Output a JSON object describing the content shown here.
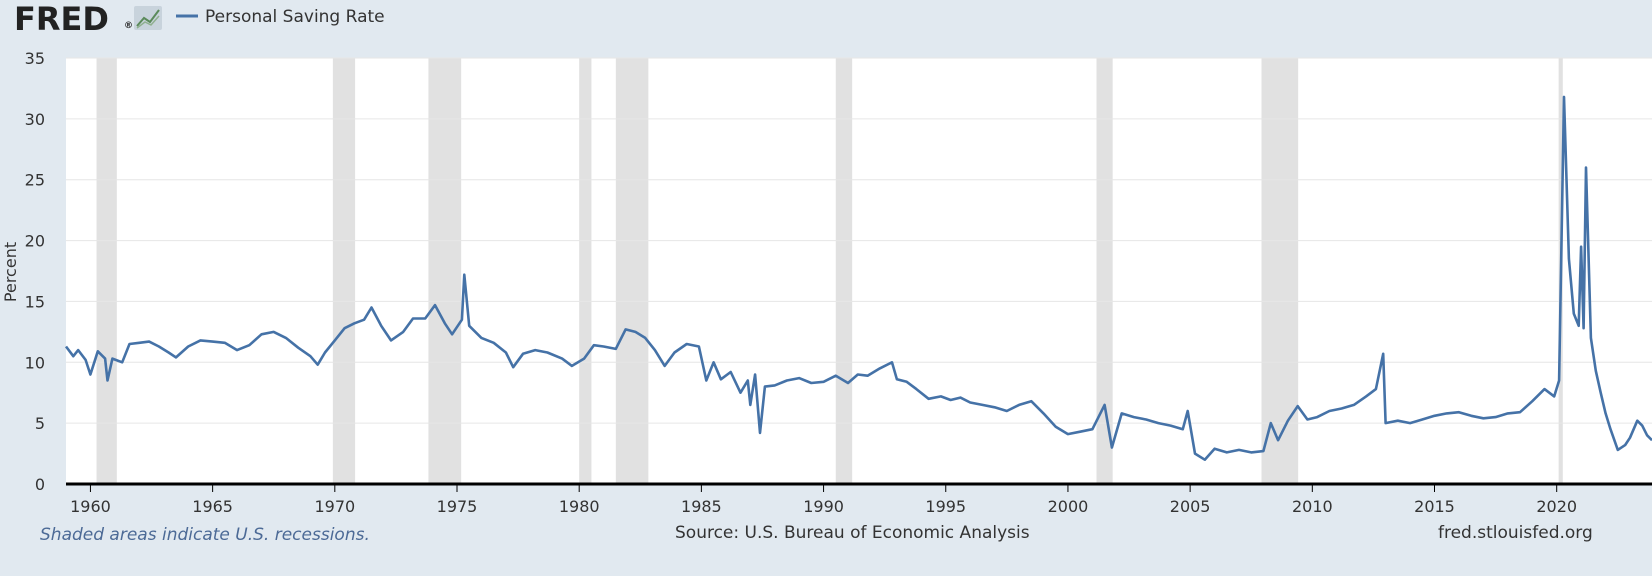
{
  "logo": {
    "text": "FRED",
    "trademark": "®",
    "icon": "chart-icon"
  },
  "legend": {
    "label": "Personal Saving Rate",
    "color": "#4572a7"
  },
  "footer": {
    "recession_note": "Shaded areas indicate U.S. recessions.",
    "source": "Source: U.S. Bureau of Economic Analysis",
    "site": "fred.stlouisfed.org"
  },
  "chart_data": {
    "type": "line",
    "title": "",
    "xlabel": "",
    "ylabel": "Percent",
    "xlim": [
      1959.0,
      2023.9
    ],
    "ylim": [
      0,
      35
    ],
    "yticks": [
      0,
      5,
      10,
      15,
      20,
      25,
      30,
      35
    ],
    "xticks": [
      1960,
      1965,
      1970,
      1975,
      1980,
      1985,
      1990,
      1995,
      2000,
      2005,
      2010,
      2015,
      2020
    ],
    "grid": true,
    "legend_position": "top-left",
    "colors": {
      "line": "#4572a7",
      "recession": "#e1e1e1",
      "grid": "#e6e6e6",
      "plot_bg": "#ffffff",
      "page_bg": "#e1e9f0"
    },
    "recessions": [
      [
        1960.25,
        1961.08
      ],
      [
        1969.92,
        1970.83
      ],
      [
        1973.83,
        1975.17
      ],
      [
        1980.0,
        1980.5
      ],
      [
        1981.5,
        1982.83
      ],
      [
        1990.5,
        1991.17
      ],
      [
        2001.17,
        2001.83
      ],
      [
        2007.92,
        2009.42
      ],
      [
        2020.08,
        2020.25
      ]
    ],
    "series": [
      {
        "name": "Personal Saving Rate",
        "points": [
          [
            1959.0,
            11.3
          ],
          [
            1959.3,
            10.5
          ],
          [
            1959.5,
            11.0
          ],
          [
            1959.8,
            10.2
          ],
          [
            1960.0,
            9.0
          ],
          [
            1960.3,
            10.9
          ],
          [
            1960.6,
            10.3
          ],
          [
            1960.7,
            8.5
          ],
          [
            1960.9,
            10.3
          ],
          [
            1961.3,
            10.0
          ],
          [
            1961.6,
            11.5
          ],
          [
            1962.0,
            11.6
          ],
          [
            1962.4,
            11.7
          ],
          [
            1962.8,
            11.3
          ],
          [
            1963.2,
            10.8
          ],
          [
            1963.5,
            10.4
          ],
          [
            1964.0,
            11.3
          ],
          [
            1964.5,
            11.8
          ],
          [
            1965.0,
            11.7
          ],
          [
            1965.5,
            11.6
          ],
          [
            1966.0,
            11.0
          ],
          [
            1966.5,
            11.4
          ],
          [
            1967.0,
            12.3
          ],
          [
            1967.5,
            12.5
          ],
          [
            1968.0,
            12.0
          ],
          [
            1968.5,
            11.2
          ],
          [
            1969.0,
            10.5
          ],
          [
            1969.3,
            9.8
          ],
          [
            1969.6,
            10.8
          ],
          [
            1970.0,
            11.8
          ],
          [
            1970.4,
            12.8
          ],
          [
            1970.8,
            13.2
          ],
          [
            1971.2,
            13.5
          ],
          [
            1971.5,
            14.5
          ],
          [
            1971.9,
            13.0
          ],
          [
            1972.3,
            11.8
          ],
          [
            1972.8,
            12.5
          ],
          [
            1973.2,
            13.6
          ],
          [
            1973.7,
            13.6
          ],
          [
            1974.1,
            14.7
          ],
          [
            1974.5,
            13.2
          ],
          [
            1974.8,
            12.3
          ],
          [
            1975.2,
            13.5
          ],
          [
            1975.3,
            17.2
          ],
          [
            1975.5,
            13.0
          ],
          [
            1976.0,
            12.0
          ],
          [
            1976.5,
            11.6
          ],
          [
            1977.0,
            10.8
          ],
          [
            1977.3,
            9.6
          ],
          [
            1977.7,
            10.7
          ],
          [
            1978.2,
            11.0
          ],
          [
            1978.7,
            10.8
          ],
          [
            1979.3,
            10.3
          ],
          [
            1979.7,
            9.7
          ],
          [
            1980.2,
            10.3
          ],
          [
            1980.6,
            11.4
          ],
          [
            1981.0,
            11.3
          ],
          [
            1981.5,
            11.1
          ],
          [
            1981.9,
            12.7
          ],
          [
            1982.3,
            12.5
          ],
          [
            1982.7,
            12.0
          ],
          [
            1983.1,
            11.0
          ],
          [
            1983.5,
            9.7
          ],
          [
            1983.9,
            10.8
          ],
          [
            1984.4,
            11.5
          ],
          [
            1984.9,
            11.3
          ],
          [
            1985.2,
            8.5
          ],
          [
            1985.5,
            10.0
          ],
          [
            1985.8,
            8.6
          ],
          [
            1986.2,
            9.2
          ],
          [
            1986.6,
            7.5
          ],
          [
            1986.9,
            8.5
          ],
          [
            1987.0,
            6.5
          ],
          [
            1987.2,
            9.0
          ],
          [
            1987.4,
            4.2
          ],
          [
            1987.6,
            8.0
          ],
          [
            1988.0,
            8.1
          ],
          [
            1988.5,
            8.5
          ],
          [
            1989.0,
            8.7
          ],
          [
            1989.5,
            8.3
          ],
          [
            1990.0,
            8.4
          ],
          [
            1990.5,
            8.9
          ],
          [
            1991.0,
            8.3
          ],
          [
            1991.4,
            9.0
          ],
          [
            1991.8,
            8.9
          ],
          [
            1992.3,
            9.5
          ],
          [
            1992.8,
            10.0
          ],
          [
            1993.0,
            8.6
          ],
          [
            1993.4,
            8.4
          ],
          [
            1993.8,
            7.8
          ],
          [
            1994.3,
            7.0
          ],
          [
            1994.8,
            7.2
          ],
          [
            1995.2,
            6.9
          ],
          [
            1995.6,
            7.1
          ],
          [
            1996.0,
            6.7
          ],
          [
            1996.5,
            6.5
          ],
          [
            1997.0,
            6.3
          ],
          [
            1997.5,
            6.0
          ],
          [
            1998.0,
            6.5
          ],
          [
            1998.5,
            6.8
          ],
          [
            1999.0,
            5.8
          ],
          [
            1999.5,
            4.7
          ],
          [
            2000.0,
            4.1
          ],
          [
            2000.5,
            4.3
          ],
          [
            2001.0,
            4.5
          ],
          [
            2001.5,
            6.5
          ],
          [
            2001.8,
            3.0
          ],
          [
            2002.2,
            5.8
          ],
          [
            2002.7,
            5.5
          ],
          [
            2003.2,
            5.3
          ],
          [
            2003.7,
            5.0
          ],
          [
            2004.2,
            4.8
          ],
          [
            2004.7,
            4.5
          ],
          [
            2004.9,
            6.0
          ],
          [
            2005.2,
            2.5
          ],
          [
            2005.6,
            2.0
          ],
          [
            2006.0,
            2.9
          ],
          [
            2006.5,
            2.6
          ],
          [
            2007.0,
            2.8
          ],
          [
            2007.5,
            2.6
          ],
          [
            2008.0,
            2.7
          ],
          [
            2008.3,
            5.0
          ],
          [
            2008.6,
            3.6
          ],
          [
            2009.0,
            5.2
          ],
          [
            2009.4,
            6.4
          ],
          [
            2009.8,
            5.3
          ],
          [
            2010.2,
            5.5
          ],
          [
            2010.7,
            6.0
          ],
          [
            2011.2,
            6.2
          ],
          [
            2011.7,
            6.5
          ],
          [
            2012.2,
            7.2
          ],
          [
            2012.6,
            7.8
          ],
          [
            2012.9,
            10.7
          ],
          [
            2013.0,
            5.0
          ],
          [
            2013.5,
            5.2
          ],
          [
            2014.0,
            5.0
          ],
          [
            2014.5,
            5.3
          ],
          [
            2015.0,
            5.6
          ],
          [
            2015.5,
            5.8
          ],
          [
            2016.0,
            5.9
          ],
          [
            2016.5,
            5.6
          ],
          [
            2017.0,
            5.4
          ],
          [
            2017.5,
            5.5
          ],
          [
            2018.0,
            5.8
          ],
          [
            2018.5,
            5.9
          ],
          [
            2019.0,
            6.8
          ],
          [
            2019.5,
            7.8
          ],
          [
            2019.9,
            7.2
          ],
          [
            2020.1,
            8.5
          ],
          [
            2020.3,
            31.8
          ],
          [
            2020.5,
            18.5
          ],
          [
            2020.7,
            14.0
          ],
          [
            2020.9,
            13.0
          ],
          [
            2021.0,
            19.5
          ],
          [
            2021.1,
            12.8
          ],
          [
            2021.2,
            26.0
          ],
          [
            2021.4,
            12.0
          ],
          [
            2021.6,
            9.3
          ],
          [
            2021.8,
            7.5
          ],
          [
            2022.0,
            5.8
          ],
          [
            2022.2,
            4.5
          ],
          [
            2022.5,
            2.8
          ],
          [
            2022.8,
            3.2
          ],
          [
            2023.0,
            3.8
          ],
          [
            2023.3,
            5.2
          ],
          [
            2023.5,
            4.8
          ],
          [
            2023.7,
            4.0
          ],
          [
            2023.9,
            3.6
          ]
        ]
      }
    ]
  }
}
